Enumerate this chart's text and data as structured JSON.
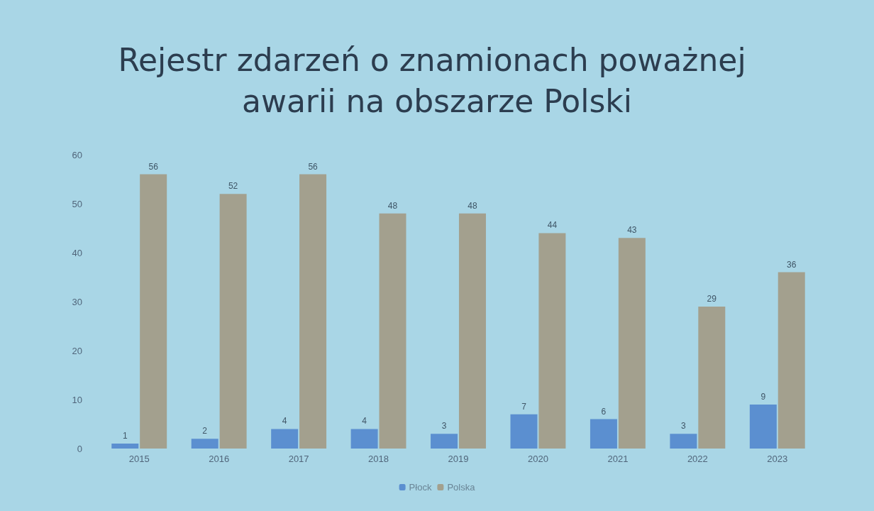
{
  "chart_data": {
    "type": "bar",
    "title": "Rejestr zdarzeń o znamionach poważnej awarii na obszarze Polski",
    "categories": [
      "2015",
      "2016",
      "2017",
      "2018",
      "2019",
      "2020",
      "2021",
      "2022",
      "2023"
    ],
    "series": [
      {
        "name": "Płock",
        "color": "#5b8fd0",
        "values": [
          1,
          2,
          4,
          4,
          3,
          7,
          6,
          3,
          9
        ]
      },
      {
        "name": "Polska",
        "color": "#a3a08e",
        "values": [
          56,
          52,
          56,
          48,
          48,
          44,
          43,
          29,
          36
        ]
      }
    ],
    "ylim": [
      0,
      60
    ],
    "yticks": [
      0,
      10,
      20,
      30,
      40,
      50,
      60
    ],
    "grid": false,
    "legend": "bottom",
    "data_labels": true
  }
}
